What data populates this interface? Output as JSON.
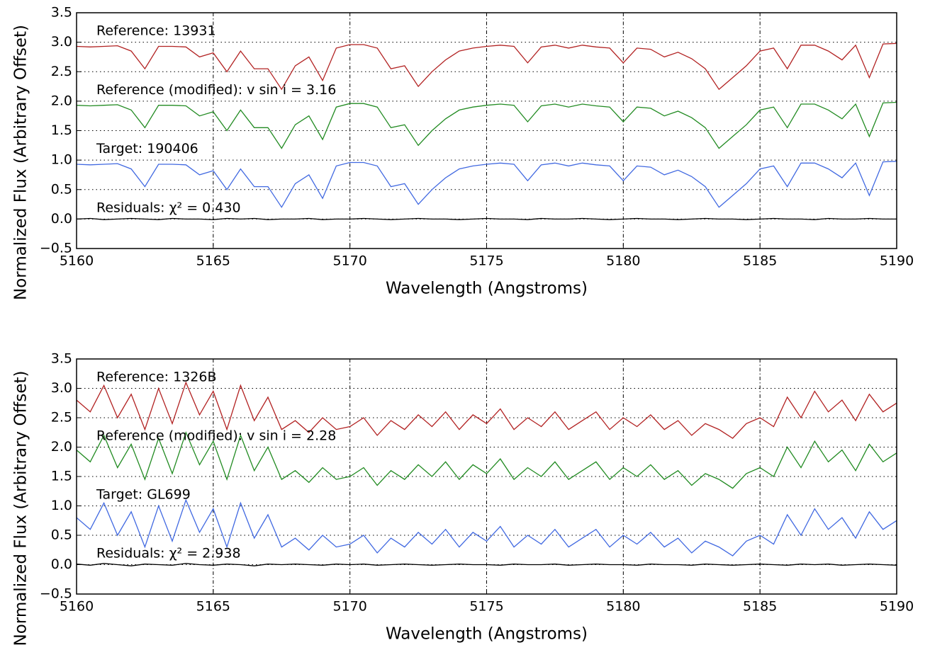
{
  "chart_data": [
    {
      "type": "line",
      "xlabel": "Wavelength (Angstroms)",
      "ylabel": "Normalized Flux (Arbitrary Offset)",
      "annotations": [
        "Reference: 13931",
        "Reference (modified): v sin i = 3.16",
        "Target: 190406",
        "Residuals: χ² = 0.430"
      ],
      "xlim": [
        5160,
        5190
      ],
      "ylim": [
        -0.5,
        3.5
      ],
      "grid": true,
      "xticks": [
        5160,
        5165,
        5170,
        5175,
        5180,
        5185,
        5190
      ],
      "yticks": [
        {
          "value": -0.5,
          "label": "−0.5"
        },
        {
          "value": 0,
          "label": "0.0"
        },
        0.5,
        {
          "value": 1,
          "label": "1.0"
        },
        1.5,
        {
          "value": 2,
          "label": "2.0"
        },
        2.5,
        {
          "value": 3,
          "label": "3.0"
        },
        3.5
      ],
      "x": [
        5160,
        5160.5,
        5161,
        5161.5,
        5162,
        5162.5,
        5163,
        5163.5,
        5164,
        5164.5,
        5165,
        5165.5,
        5166,
        5166.5,
        5167,
        5167.5,
        5168,
        5168.5,
        5169,
        5169.5,
        5170,
        5170.5,
        5171,
        5171.5,
        5172,
        5172.5,
        5173,
        5173.5,
        5174,
        5174.5,
        5175,
        5175.5,
        5176,
        5176.5,
        5177,
        5177.5,
        5178,
        5178.5,
        5179,
        5179.5,
        5180,
        5180.5,
        5181,
        5181.5,
        5182,
        5182.5,
        5183,
        5183.5,
        5184,
        5184.5,
        5185,
        5185.5,
        5186,
        5186.5,
        5187,
        5187.5,
        5188,
        5188.5,
        5189,
        5189.5,
        5190
      ],
      "series": [
        {
          "color": "#b22222",
          "values": [
            2.93,
            2.92,
            2.93,
            2.94,
            2.85,
            2.55,
            2.93,
            2.93,
            2.92,
            2.75,
            2.82,
            2.5,
            2.85,
            2.55,
            2.55,
            2.2,
            2.6,
            2.75,
            2.35,
            2.9,
            2.96,
            2.96,
            2.9,
            2.55,
            2.6,
            2.25,
            2.5,
            2.7,
            2.85,
            2.9,
            2.93,
            2.95,
            2.93,
            2.65,
            2.92,
            2.95,
            2.9,
            2.95,
            2.92,
            2.9,
            2.65,
            2.9,
            2.88,
            2.75,
            2.83,
            2.72,
            2.55,
            2.2,
            2.4,
            2.6,
            2.85,
            2.9,
            2.55,
            2.95,
            2.95,
            2.85,
            2.7,
            2.95,
            2.4,
            2.97,
            2.98
          ]
        },
        {
          "color": "#228b22",
          "values": [
            1.93,
            1.92,
            1.93,
            1.94,
            1.85,
            1.55,
            1.93,
            1.93,
            1.92,
            1.75,
            1.82,
            1.5,
            1.85,
            1.55,
            1.55,
            1.2,
            1.6,
            1.75,
            1.35,
            1.9,
            1.96,
            1.96,
            1.9,
            1.55,
            1.6,
            1.25,
            1.5,
            1.7,
            1.85,
            1.9,
            1.93,
            1.95,
            1.93,
            1.65,
            1.92,
            1.95,
            1.9,
            1.95,
            1.92,
            1.9,
            1.65,
            1.9,
            1.88,
            1.75,
            1.83,
            1.72,
            1.55,
            1.2,
            1.4,
            1.6,
            1.85,
            1.9,
            1.55,
            1.95,
            1.95,
            1.85,
            1.7,
            1.95,
            1.4,
            1.97,
            1.98
          ]
        },
        {
          "color": "#4169e1",
          "values": [
            0.93,
            0.92,
            0.93,
            0.94,
            0.85,
            0.55,
            0.93,
            0.93,
            0.92,
            0.75,
            0.82,
            0.5,
            0.85,
            0.55,
            0.55,
            0.2,
            0.6,
            0.75,
            0.35,
            0.9,
            0.96,
            0.96,
            0.9,
            0.55,
            0.6,
            0.25,
            0.5,
            0.7,
            0.85,
            0.9,
            0.93,
            0.95,
            0.93,
            0.65,
            0.92,
            0.95,
            0.9,
            0.95,
            0.92,
            0.9,
            0.65,
            0.9,
            0.88,
            0.75,
            0.83,
            0.72,
            0.55,
            0.2,
            0.4,
            0.6,
            0.85,
            0.9,
            0.55,
            0.95,
            0.95,
            0.85,
            0.7,
            0.95,
            0.4,
            0.97,
            0.98
          ]
        },
        {
          "color": "#000000",
          "values": [
            0,
            0.01,
            -0.01,
            0,
            0.01,
            0,
            -0.01,
            0.01,
            0,
            0,
            -0.01,
            0.01,
            0,
            0.01,
            -0.01,
            0,
            0,
            0.01,
            -0.01,
            0,
            0,
            0.01,
            0,
            -0.01,
            0,
            0.01,
            0,
            0,
            -0.01,
            0,
            0.01,
            0,
            0,
            -0.01,
            0.01,
            0,
            0,
            0.01,
            0,
            -0.01,
            0,
            0.01,
            0,
            0,
            -0.01,
            0,
            0.01,
            0,
            0,
            -0.01,
            0,
            0.01,
            0,
            0,
            -0.01,
            0.01,
            0,
            0,
            0.01,
            0,
            0
          ]
        }
      ]
    },
    {
      "type": "line",
      "xlabel": "Wavelength (Angstroms)",
      "ylabel": "Normalized Flux (Arbitrary Offset)",
      "annotations": [
        "Reference: 1326B",
        "Reference (modified): v sin i = 2.28",
        "Target: GL699",
        "Residuals: χ² = 2.938"
      ],
      "xlim": [
        5160,
        5190
      ],
      "ylim": [
        -0.5,
        3.5
      ],
      "grid": true,
      "xticks": [
        5160,
        5165,
        5170,
        5175,
        5180,
        5185,
        5190
      ],
      "yticks": [
        {
          "value": -0.5,
          "label": "−0.5"
        },
        {
          "value": 0,
          "label": "0.0"
        },
        0.5,
        {
          "value": 1,
          "label": "1.0"
        },
        1.5,
        {
          "value": 2,
          "label": "2.0"
        },
        2.5,
        {
          "value": 3,
          "label": "3.0"
        },
        3.5
      ],
      "x": [
        5160,
        5160.5,
        5161,
        5161.5,
        5162,
        5162.5,
        5163,
        5163.5,
        5164,
        5164.5,
        5165,
        5165.5,
        5166,
        5166.5,
        5167,
        5167.5,
        5168,
        5168.5,
        5169,
        5169.5,
        5170,
        5170.5,
        5171,
        5171.5,
        5172,
        5172.5,
        5173,
        5173.5,
        5174,
        5174.5,
        5175,
        5175.5,
        5176,
        5176.5,
        5177,
        5177.5,
        5178,
        5178.5,
        5179,
        5179.5,
        5180,
        5180.5,
        5181,
        5181.5,
        5182,
        5182.5,
        5183,
        5183.5,
        5184,
        5184.5,
        5185,
        5185.5,
        5186,
        5186.5,
        5187,
        5187.5,
        5188,
        5188.5,
        5189,
        5189.5,
        5190
      ],
      "series": [
        {
          "color": "#b22222",
          "values": [
            2.8,
            2.6,
            3.05,
            2.5,
            2.9,
            2.3,
            3.0,
            2.4,
            3.1,
            2.55,
            2.95,
            2.3,
            3.05,
            2.45,
            2.85,
            2.3,
            2.45,
            2.25,
            2.5,
            2.3,
            2.35,
            2.5,
            2.2,
            2.45,
            2.3,
            2.55,
            2.35,
            2.6,
            2.3,
            2.55,
            2.4,
            2.65,
            2.3,
            2.5,
            2.35,
            2.6,
            2.3,
            2.45,
            2.6,
            2.3,
            2.5,
            2.35,
            2.55,
            2.3,
            2.45,
            2.2,
            2.4,
            2.3,
            2.15,
            2.4,
            2.5,
            2.35,
            2.85,
            2.5,
            2.95,
            2.6,
            2.8,
            2.45,
            2.9,
            2.6,
            2.75
          ]
        },
        {
          "color": "#228b22",
          "values": [
            1.95,
            1.75,
            2.2,
            1.65,
            2.05,
            1.45,
            2.15,
            1.55,
            2.25,
            1.7,
            2.1,
            1.45,
            2.2,
            1.6,
            2.0,
            1.45,
            1.6,
            1.4,
            1.65,
            1.45,
            1.5,
            1.65,
            1.35,
            1.6,
            1.45,
            1.7,
            1.5,
            1.75,
            1.45,
            1.7,
            1.55,
            1.8,
            1.45,
            1.65,
            1.5,
            1.75,
            1.45,
            1.6,
            1.75,
            1.45,
            1.65,
            1.5,
            1.7,
            1.45,
            1.6,
            1.35,
            1.55,
            1.45,
            1.3,
            1.55,
            1.65,
            1.5,
            2.0,
            1.65,
            2.1,
            1.75,
            1.95,
            1.6,
            2.05,
            1.75,
            1.9
          ]
        },
        {
          "color": "#4169e1",
          "values": [
            0.8,
            0.6,
            1.05,
            0.5,
            0.9,
            0.3,
            1.0,
            0.4,
            1.1,
            0.55,
            0.95,
            0.3,
            1.05,
            0.45,
            0.85,
            0.3,
            0.45,
            0.25,
            0.5,
            0.3,
            0.35,
            0.5,
            0.2,
            0.45,
            0.3,
            0.55,
            0.35,
            0.6,
            0.3,
            0.55,
            0.4,
            0.65,
            0.3,
            0.5,
            0.35,
            0.6,
            0.3,
            0.45,
            0.6,
            0.3,
            0.5,
            0.35,
            0.55,
            0.3,
            0.45,
            0.2,
            0.4,
            0.3,
            0.15,
            0.4,
            0.5,
            0.35,
            0.85,
            0.5,
            0.95,
            0.6,
            0.8,
            0.45,
            0.9,
            0.6,
            0.75
          ]
        },
        {
          "color": "#000000",
          "values": [
            0.01,
            -0.01,
            0.02,
            0,
            -0.02,
            0.01,
            0,
            -0.01,
            0.02,
            0,
            -0.01,
            0.01,
            0,
            -0.02,
            0.01,
            0,
            0.01,
            0,
            -0.01,
            0.01,
            0,
            0.01,
            -0.01,
            0,
            0.01,
            0,
            -0.01,
            0,
            0.01,
            0,
            0,
            -0.01,
            0.01,
            0,
            0,
            0.01,
            -0.01,
            0,
            0.01,
            0,
            0,
            -0.01,
            0.01,
            0,
            0,
            -0.01,
            0.01,
            0,
            -0.01,
            0,
            0.01,
            0,
            -0.01,
            0.01,
            0,
            0.01,
            -0.01,
            0,
            0.01,
            0,
            -0.01
          ]
        }
      ]
    }
  ]
}
